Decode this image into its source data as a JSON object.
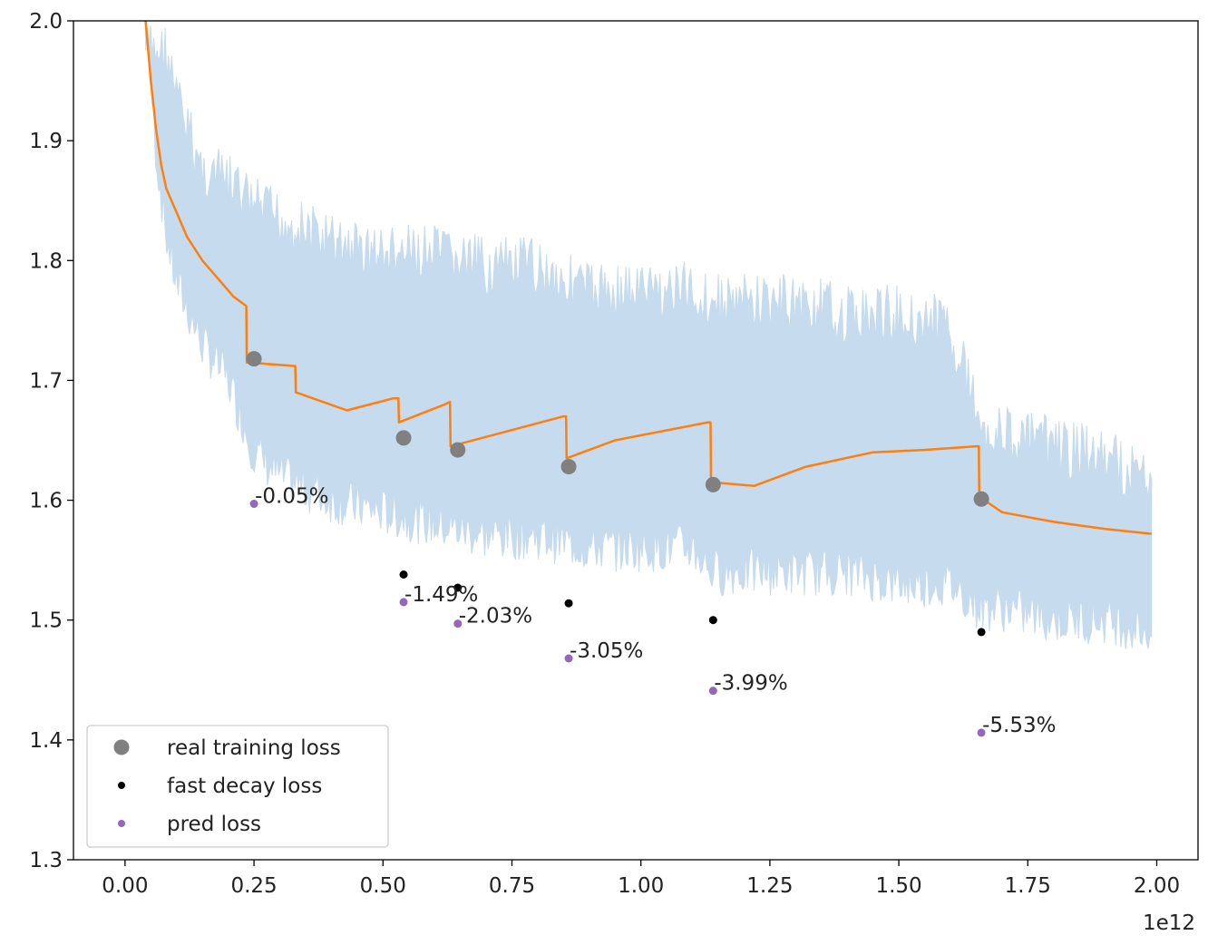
{
  "chart_data": {
    "type": "scatter",
    "title": "",
    "xlabel": "",
    "ylabel": "",
    "x_offset_label": "1e12",
    "xlim": [
      -0.1,
      2.08
    ],
    "ylim": [
      1.3,
      2.0
    ],
    "xticks": [
      "0.00",
      "0.25",
      "0.50",
      "0.75",
      "1.00",
      "1.25",
      "1.50",
      "1.75",
      "2.00"
    ],
    "yticks": [
      "1.3",
      "1.4",
      "1.5",
      "1.6",
      "1.7",
      "1.8",
      "1.9",
      "2.0"
    ],
    "colors": {
      "raw_loss": "#c6dbed",
      "smoothed_loss": "#ff7f0e",
      "real_training_loss": "#808080",
      "fast_decay_loss": "#000000",
      "pred_loss": "#9467bd"
    },
    "series": [
      {
        "name": "real training loss",
        "kind": "marker",
        "x": [
          0.25,
          0.54,
          0.645,
          0.86,
          1.14,
          1.66
        ],
        "y": [
          1.718,
          1.652,
          1.642,
          1.628,
          1.613,
          1.601
        ]
      },
      {
        "name": "fast decay loss",
        "kind": "marker",
        "x": [
          0.54,
          0.645,
          0.86,
          1.14,
          1.66
        ],
        "y": [
          1.538,
          1.527,
          1.514,
          1.5,
          1.49
        ]
      },
      {
        "name": "pred loss",
        "kind": "marker",
        "x": [
          0.25,
          0.54,
          0.645,
          0.86,
          1.14,
          1.66
        ],
        "y": [
          1.597,
          1.515,
          1.497,
          1.468,
          1.441,
          1.406
        ]
      }
    ],
    "smoothed_loss_line": {
      "x": [
        0.04,
        0.05,
        0.06,
        0.07,
        0.08,
        0.09,
        0.1,
        0.12,
        0.15,
        0.18,
        0.21,
        0.235,
        0.236,
        0.33,
        0.331,
        0.43,
        0.52,
        0.53,
        0.531,
        0.62,
        0.63,
        0.631,
        0.85,
        0.855,
        0.856,
        0.95,
        1.13,
        1.135,
        1.136,
        1.22,
        1.32,
        1.45,
        1.55,
        1.65,
        1.655,
        1.656,
        1.7,
        1.8,
        1.9,
        1.99
      ],
      "y": [
        2.0,
        1.95,
        1.91,
        1.88,
        1.86,
        1.85,
        1.84,
        1.82,
        1.8,
        1.785,
        1.77,
        1.762,
        1.715,
        1.712,
        1.69,
        1.675,
        1.685,
        1.685,
        1.665,
        1.68,
        1.682,
        1.645,
        1.67,
        1.67,
        1.635,
        1.65,
        1.665,
        1.665,
        1.615,
        1.612,
        1.628,
        1.64,
        1.642,
        1.645,
        1.645,
        1.603,
        1.59,
        1.582,
        1.576,
        1.572
      ]
    },
    "raw_loss_band": {
      "x": [
        0.04,
        0.06,
        0.08,
        0.1,
        0.15,
        0.2,
        0.25,
        0.3,
        0.4,
        0.5,
        0.6,
        0.7,
        0.8,
        0.9,
        1.0,
        1.1,
        1.14,
        1.2,
        1.3,
        1.4,
        1.5,
        1.6,
        1.66,
        1.7,
        1.8,
        1.9,
        1.99
      ],
      "upper": [
        2.0,
        2.0,
        2.0,
        1.96,
        1.9,
        1.89,
        1.87,
        1.86,
        1.84,
        1.83,
        1.83,
        1.82,
        1.82,
        1.8,
        1.8,
        1.8,
        1.79,
        1.79,
        1.79,
        1.78,
        1.78,
        1.77,
        1.69,
        1.68,
        1.67,
        1.66,
        1.64
      ],
      "lower": [
        1.99,
        1.87,
        1.8,
        1.76,
        1.71,
        1.68,
        1.62,
        1.6,
        1.58,
        1.57,
        1.56,
        1.55,
        1.55,
        1.54,
        1.54,
        1.54,
        1.52,
        1.52,
        1.52,
        1.52,
        1.51,
        1.51,
        1.49,
        1.49,
        1.48,
        1.48,
        1.47
      ]
    },
    "annotations": [
      {
        "text": "-0.05%",
        "x": 0.25,
        "y": 1.597
      },
      {
        "text": "-1.49%",
        "x": 0.54,
        "y": 1.515
      },
      {
        "text": "-2.03%",
        "x": 0.645,
        "y": 1.497
      },
      {
        "text": "-3.05%",
        "x": 0.86,
        "y": 1.468
      },
      {
        "text": "-3.99%",
        "x": 1.14,
        "y": 1.441
      },
      {
        "text": "-5.53%",
        "x": 1.66,
        "y": 1.406
      }
    ],
    "legend": {
      "placement": "lower-left",
      "entries": [
        {
          "label": "real training loss",
          "marker": "large-circle",
          "color": "#808080"
        },
        {
          "label": "fast decay loss",
          "marker": "small-circle",
          "color": "#000000"
        },
        {
          "label": "pred loss",
          "marker": "small-circle",
          "color": "#9467bd"
        }
      ]
    },
    "grid": false
  }
}
